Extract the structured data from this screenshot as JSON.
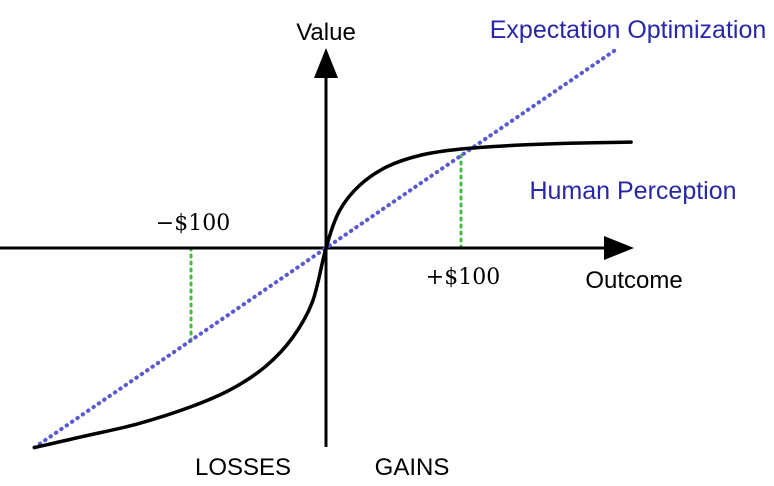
{
  "chart_data": {
    "type": "line",
    "xlabel": "Outcome",
    "ylabel": "Value",
    "x_ticks": [
      {
        "x": -100,
        "label": "−$100"
      },
      {
        "x": 100,
        "label": "+$100"
      }
    ],
    "region_labels": {
      "left": "LOSSES",
      "right": "GAINS"
    },
    "series": [
      {
        "name": "Expectation Optimization",
        "style": "dotted",
        "color": "#5a5ad0",
        "points": [
          [
            -216,
            -147.8
          ],
          [
            0,
            0
          ],
          [
            216,
            147.8
          ]
        ]
      },
      {
        "name": "Human Perception",
        "style": "solid",
        "color": "#000000",
        "points": [
          [
            -216,
            -147.8
          ],
          [
            -180,
            -139.6
          ],
          [
            -140,
            -130.4
          ],
          [
            -100,
            -117.6
          ],
          [
            -70,
            -104.5
          ],
          [
            -45,
            -87.9
          ],
          [
            -25,
            -66.7
          ],
          [
            -10,
            -39.7
          ],
          [
            0,
            0
          ],
          [
            10,
            27.6
          ],
          [
            25,
            46.5
          ],
          [
            45,
            60.1
          ],
          [
            70,
            68.7
          ],
          [
            100,
            73.3
          ],
          [
            140,
            76.1
          ],
          [
            180,
            77.6
          ],
          [
            226,
            78.4
          ]
        ]
      }
    ],
    "guides": [
      {
        "x": -100,
        "style": "dotted",
        "color": "#44bb44"
      },
      {
        "x": 100,
        "style": "dotted",
        "color": "#44bb44"
      }
    ],
    "colors": {
      "label_blue": "#2727a8",
      "axis": "#000000"
    }
  }
}
